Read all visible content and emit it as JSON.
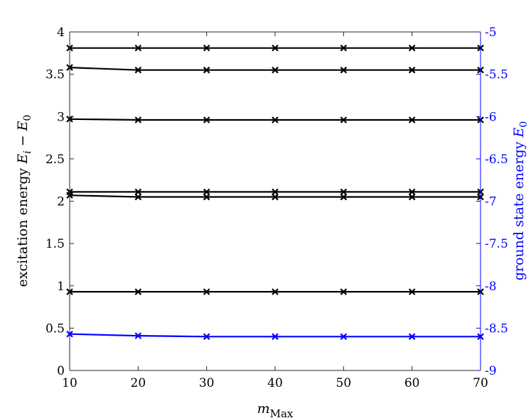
{
  "chart_data": {
    "type": "line",
    "x": [
      10,
      20,
      30,
      40,
      50,
      60,
      70
    ],
    "xlim": [
      10,
      70
    ],
    "xticks": [
      "10",
      "20",
      "30",
      "40",
      "50",
      "60",
      "70"
    ],
    "xlabel_main": "m",
    "xlabel_sub": "Max",
    "y_left": {
      "label_text": "excitation energy ",
      "label_math": "E",
      "label_sub_i": "i",
      "label_minus": " − ",
      "label_math2": "E",
      "label_sub_0": "0",
      "ylim": [
        0,
        4
      ],
      "ticks": [
        "0",
        "0.5",
        "1",
        "1.5",
        "2",
        "2.5",
        "3",
        "3.5",
        "4"
      ],
      "color": "#000000"
    },
    "y_right": {
      "label_text": "ground state energy ",
      "label_math": "E",
      "label_sub_0": "0",
      "ylim": [
        -9,
        -5
      ],
      "ticks": [
        "-9",
        "-8.5",
        "-8",
        "-7.5",
        "-7",
        "-6.5",
        "-6",
        "-5.5",
        "-5"
      ],
      "color": "#0000ff"
    },
    "series": [
      {
        "axis": "left",
        "color": "#000000",
        "marker": "x",
        "values": [
          3.81,
          3.81,
          3.81,
          3.81,
          3.81,
          3.81,
          3.81
        ]
      },
      {
        "axis": "left",
        "color": "#000000",
        "marker": "x",
        "values": [
          3.58,
          3.55,
          3.55,
          3.55,
          3.55,
          3.55,
          3.55
        ]
      },
      {
        "axis": "left",
        "color": "#000000",
        "marker": "x",
        "values": [
          2.97,
          2.96,
          2.96,
          2.96,
          2.96,
          2.96,
          2.96
        ]
      },
      {
        "axis": "left",
        "color": "#000000",
        "marker": "x",
        "values": [
          2.11,
          2.11,
          2.11,
          2.11,
          2.11,
          2.11,
          2.11
        ]
      },
      {
        "axis": "left",
        "color": "#000000",
        "marker": "x",
        "values": [
          2.07,
          2.05,
          2.05,
          2.05,
          2.05,
          2.05,
          2.05
        ]
      },
      {
        "axis": "left",
        "color": "#000000",
        "marker": "x",
        "values": [
          0.93,
          0.93,
          0.93,
          0.93,
          0.93,
          0.93,
          0.93
        ]
      },
      {
        "axis": "right",
        "color": "#0000ff",
        "marker": "x",
        "values": [
          -8.57,
          -8.59,
          -8.6,
          -8.6,
          -8.6,
          -8.6,
          -8.6
        ]
      }
    ],
    "grid": false
  }
}
